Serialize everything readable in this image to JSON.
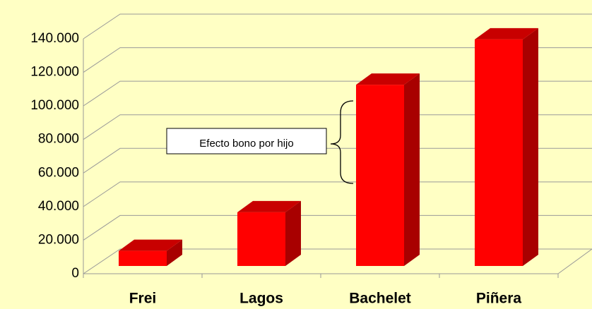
{
  "chart_data": {
    "type": "bar3d",
    "categories": [
      "Frei",
      "Lagos",
      "Bachelet",
      "Piñera"
    ],
    "values": [
      9000,
      32000,
      108000,
      135000
    ],
    "color": "#ff0000",
    "ylim": [
      0,
      140000
    ],
    "yticks": [
      0,
      {
        "value": 20000,
        "label": "20.000"
      },
      {
        "value": 40000,
        "label": "40.000"
      },
      {
        "value": 60000,
        "label": "60.000"
      },
      {
        "value": 80000,
        "label": "80.000"
      },
      {
        "value": 100000,
        "label": "100.000"
      },
      {
        "value": 120000,
        "label": "120.000"
      },
      {
        "value": 140000,
        "label": "140.000"
      }
    ],
    "grid": true,
    "annotation": "Efecto bono por hijo"
  }
}
